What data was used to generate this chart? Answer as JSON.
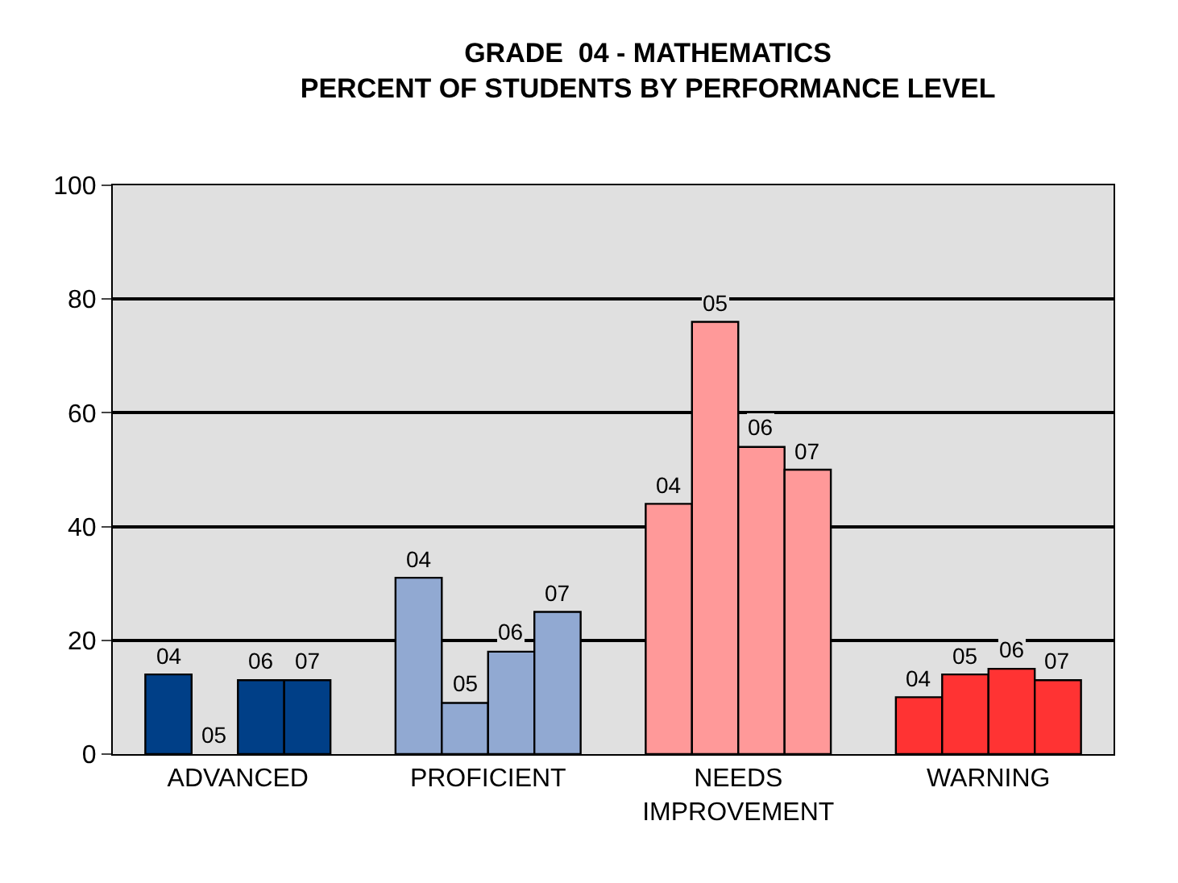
{
  "chart_data": {
    "type": "bar",
    "title": "GRADE  04 - MATHEMATICS\nPERCENT OF STUDENTS BY PERFORMANCE LEVEL",
    "categories": [
      "ADVANCED",
      "PROFICIENT",
      "NEEDS\nIMPROVEMENT",
      "WARNING"
    ],
    "series": [
      {
        "name": "04",
        "colors": [
          "#003f87",
          "#91a9d2",
          "#ff9999",
          "#ff3333"
        ],
        "values": [
          14,
          31,
          44,
          10
        ]
      },
      {
        "name": "05",
        "colors": [
          "#003f87",
          "#91a9d2",
          "#ff9999",
          "#ff3333"
        ],
        "values": [
          0,
          9,
          76,
          14
        ]
      },
      {
        "name": "06",
        "colors": [
          "#003f87",
          "#91a9d2",
          "#ff9999",
          "#ff3333"
        ],
        "values": [
          13,
          18,
          54,
          15
        ]
      },
      {
        "name": "07",
        "colors": [
          "#003f87",
          "#91a9d2",
          "#ff9999",
          "#ff3333"
        ],
        "values": [
          13,
          25,
          50,
          13
        ]
      }
    ],
    "ylim": [
      0,
      100
    ],
    "yticks": [
      0,
      20,
      40,
      60,
      80,
      100
    ],
    "grid": "y",
    "legend": false
  }
}
